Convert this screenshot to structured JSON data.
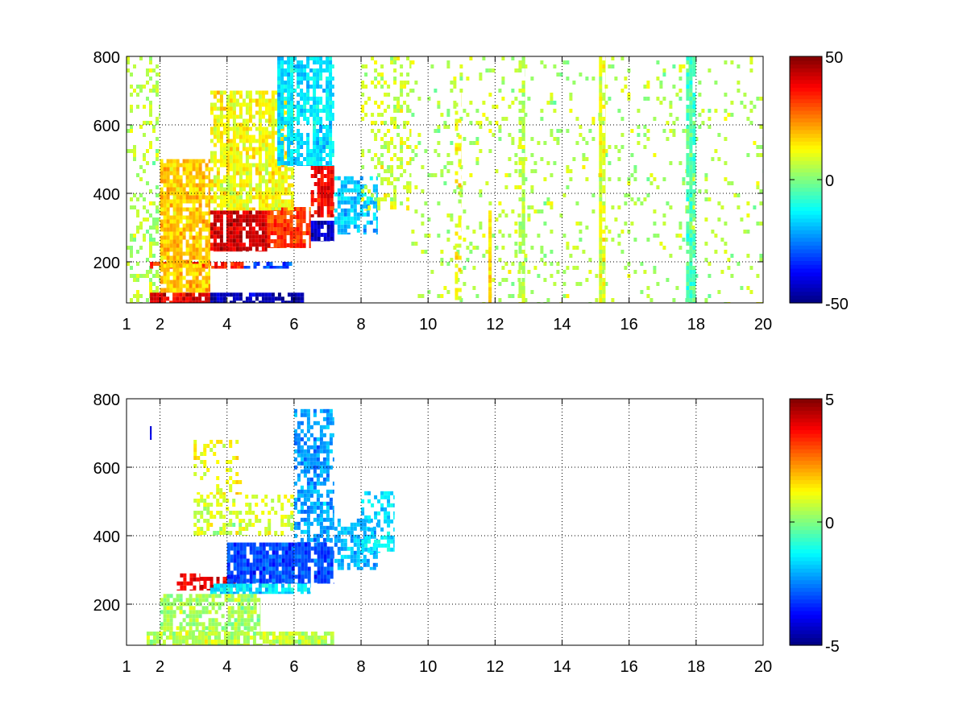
{
  "chart_data": [
    {
      "type": "heatmap",
      "title": "",
      "xlabel": "",
      "ylabel": "",
      "xlim": [
        1,
        20
      ],
      "ylim": [
        80,
        800
      ],
      "xticks": [
        1,
        2,
        4,
        6,
        8,
        10,
        12,
        14,
        16,
        18,
        20
      ],
      "yticks": [
        200,
        400,
        600,
        800
      ],
      "grid": true,
      "colormap": "jet",
      "clim": [
        -50,
        50
      ],
      "colorbar_ticks": [
        50,
        0,
        -50
      ],
      "regions": [
        {
          "x": [
            1.0,
            2.0
          ],
          "y": [
            80,
            800
          ],
          "value": 5,
          "density": 0.25
        },
        {
          "x": [
            1.7,
            3.5
          ],
          "y": [
            80,
            110
          ],
          "value": 40,
          "density": 0.9
        },
        {
          "x": [
            3.5,
            6.3
          ],
          "y": [
            80,
            110
          ],
          "value": -45,
          "density": 0.9
        },
        {
          "x": [
            1.7,
            4.5
          ],
          "y": [
            180,
            200
          ],
          "value": 35,
          "density": 0.8
        },
        {
          "x": [
            4.5,
            6.0
          ],
          "y": [
            180,
            200
          ],
          "value": -30,
          "density": 0.7
        },
        {
          "x": [
            2.0,
            3.5
          ],
          "y": [
            110,
            500
          ],
          "value": 18,
          "density": 0.8
        },
        {
          "x": [
            3.5,
            5.2
          ],
          "y": [
            230,
            350
          ],
          "value": 42,
          "density": 0.9
        },
        {
          "x": [
            5.2,
            6.5
          ],
          "y": [
            240,
            360
          ],
          "value": 32,
          "density": 0.85
        },
        {
          "x": [
            6.5,
            7.2
          ],
          "y": [
            260,
            320
          ],
          "value": -42,
          "density": 0.9
        },
        {
          "x": [
            6.5,
            7.2
          ],
          "y": [
            330,
            480
          ],
          "value": 38,
          "density": 0.85
        },
        {
          "x": [
            3.5,
            6.0
          ],
          "y": [
            350,
            700
          ],
          "value": 12,
          "density": 0.75
        },
        {
          "x": [
            5.5,
            7.2
          ],
          "y": [
            480,
            800
          ],
          "value": -15,
          "density": 0.8
        },
        {
          "x": [
            7.2,
            8.5
          ],
          "y": [
            280,
            450
          ],
          "value": -18,
          "density": 0.6
        },
        {
          "x": [
            8.0,
            9.5
          ],
          "y": [
            350,
            800
          ],
          "value": 8,
          "density": 0.3
        },
        {
          "x": [
            9.5,
            20.0
          ],
          "y": [
            80,
            800
          ],
          "value": 5,
          "density": 0.1
        },
        {
          "x": [
            15.1,
            15.3
          ],
          "y": [
            80,
            800
          ],
          "value": 10,
          "density": 0.85
        },
        {
          "x": [
            17.7,
            18.0
          ],
          "y": [
            80,
            800
          ],
          "value": -5,
          "density": 0.7
        },
        {
          "x": [
            12.7,
            12.9
          ],
          "y": [
            80,
            800
          ],
          "value": 5,
          "density": 0.6
        },
        {
          "x": [
            11.8,
            11.9
          ],
          "y": [
            80,
            350
          ],
          "value": 15,
          "density": 0.8
        },
        {
          "x": [
            10.8,
            11.0
          ],
          "y": [
            80,
            700
          ],
          "value": 12,
          "density": 0.45
        }
      ]
    },
    {
      "type": "heatmap",
      "title": "",
      "xlabel": "",
      "ylabel": "",
      "xlim": [
        1,
        20
      ],
      "ylim": [
        80,
        800
      ],
      "xticks": [
        1,
        2,
        4,
        6,
        8,
        10,
        12,
        14,
        16,
        18,
        20
      ],
      "yticks": [
        200,
        400,
        600,
        800
      ],
      "grid": true,
      "colormap": "jet",
      "clim": [
        -5,
        5
      ],
      "colorbar_ticks": [
        5,
        0,
        -5
      ],
      "regions": [
        {
          "x": [
            1.6,
            7.2
          ],
          "y": [
            80,
            120
          ],
          "value": 0.6,
          "density": 0.85
        },
        {
          "x": [
            2.0,
            5.0
          ],
          "y": [
            120,
            230
          ],
          "value": 0.4,
          "density": 0.7
        },
        {
          "x": [
            2.5,
            3.2
          ],
          "y": [
            240,
            290
          ],
          "value": 3.8,
          "density": 0.8
        },
        {
          "x": [
            3.2,
            4.5
          ],
          "y": [
            240,
            280
          ],
          "value": 4.2,
          "density": 0.75
        },
        {
          "x": [
            3.5,
            6.5
          ],
          "y": [
            230,
            260
          ],
          "value": -1.5,
          "density": 0.8
        },
        {
          "x": [
            4.0,
            7.2
          ],
          "y": [
            260,
            380
          ],
          "value": -3.0,
          "density": 0.85
        },
        {
          "x": [
            6.0,
            7.2
          ],
          "y": [
            380,
            770
          ],
          "value": -2.2,
          "density": 0.6
        },
        {
          "x": [
            3.0,
            6.0
          ],
          "y": [
            400,
            520
          ],
          "value": 0.8,
          "density": 0.4
        },
        {
          "x": [
            3.0,
            4.5
          ],
          "y": [
            520,
            680
          ],
          "value": 1.2,
          "density": 0.3
        },
        {
          "x": [
            7.2,
            8.5
          ],
          "y": [
            300,
            450
          ],
          "value": -2.0,
          "density": 0.55
        },
        {
          "x": [
            8.0,
            9.0
          ],
          "y": [
            350,
            530
          ],
          "value": -1.5,
          "density": 0.45
        },
        {
          "x": [
            1.7,
            1.75
          ],
          "y": [
            680,
            720
          ],
          "value": -4.5,
          "density": 0.9
        }
      ]
    }
  ]
}
